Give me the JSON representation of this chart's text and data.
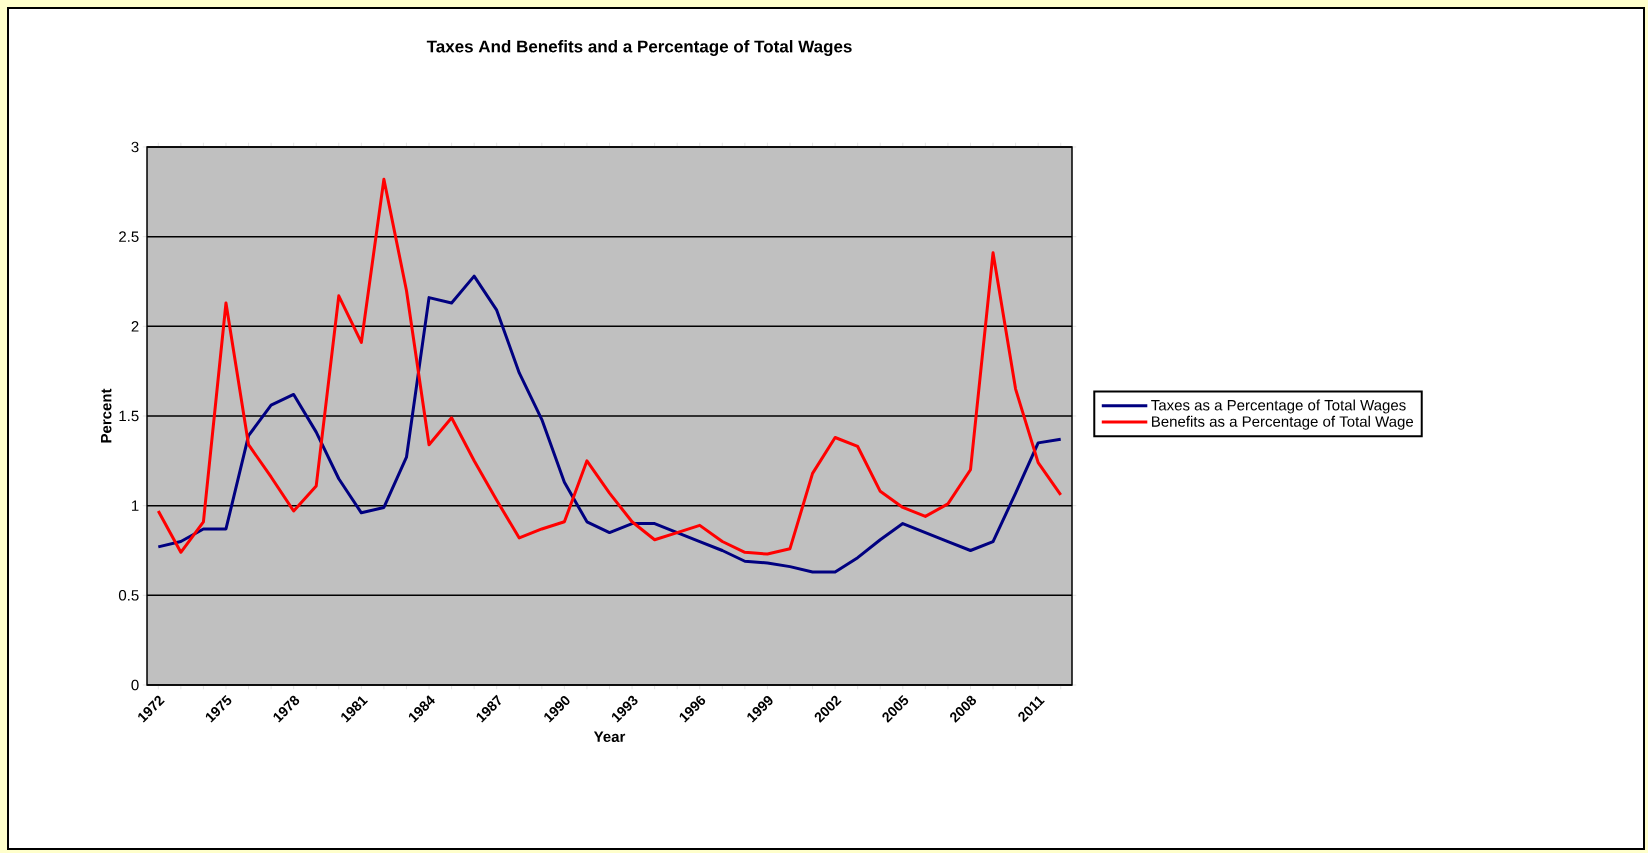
{
  "chart_data": {
    "type": "line",
    "title": "Taxes And Benefits and a Percentage of Total Wages",
    "xlabel": "Year",
    "ylabel": "Percent",
    "categories": [
      "1972",
      null,
      null,
      "1975",
      null,
      null,
      "1978",
      null,
      null,
      "1981",
      null,
      null,
      "1984",
      null,
      null,
      "1987",
      null,
      null,
      "1990",
      null,
      null,
      "1993",
      null,
      null,
      "1996",
      null,
      null,
      "1999",
      null,
      null,
      "2002",
      null,
      null,
      "2005",
      null,
      null,
      "2008",
      null,
      null,
      "2011",
      null
    ],
    "series": [
      {
        "name": "Taxes as a Percentage of Total Wages",
        "color": "#000080",
        "values": [
          0.77,
          0.8,
          0.87,
          0.87,
          1.39,
          1.56,
          1.62,
          1.41,
          1.15,
          0.96,
          0.99,
          1.27,
          2.16,
          2.13,
          2.28,
          2.09,
          1.74,
          1.48,
          1.13,
          0.91,
          0.85,
          0.9,
          0.9,
          0.85,
          0.8,
          0.75,
          0.69,
          0.68,
          0.66,
          0.63,
          0.63,
          0.71,
          0.81,
          0.9,
          0.85,
          0.8,
          0.75,
          0.8,
          1.07,
          1.35,
          1.37
        ]
      },
      {
        "name": "Benefits as a Percentage of Total Wage",
        "color": "#ff0000",
        "values": [
          0.97,
          0.74,
          0.91,
          2.13,
          1.34,
          1.16,
          0.97,
          1.11,
          2.17,
          1.91,
          2.82,
          2.2,
          1.34,
          1.49,
          1.25,
          1.03,
          0.82,
          0.87,
          0.91,
          1.25,
          1.07,
          0.91,
          0.81,
          0.85,
          0.89,
          0.8,
          0.74,
          0.73,
          0.76,
          1.18,
          1.38,
          1.33,
          1.08,
          0.99,
          0.94,
          1.01,
          1.2,
          2.41,
          1.65,
          1.24,
          1.06
        ]
      }
    ],
    "ylim": [
      0,
      3
    ],
    "yticks": [
      0,
      0.5,
      1,
      1.5,
      2,
      2.5,
      3
    ],
    "grid": "y",
    "legend": "right"
  }
}
